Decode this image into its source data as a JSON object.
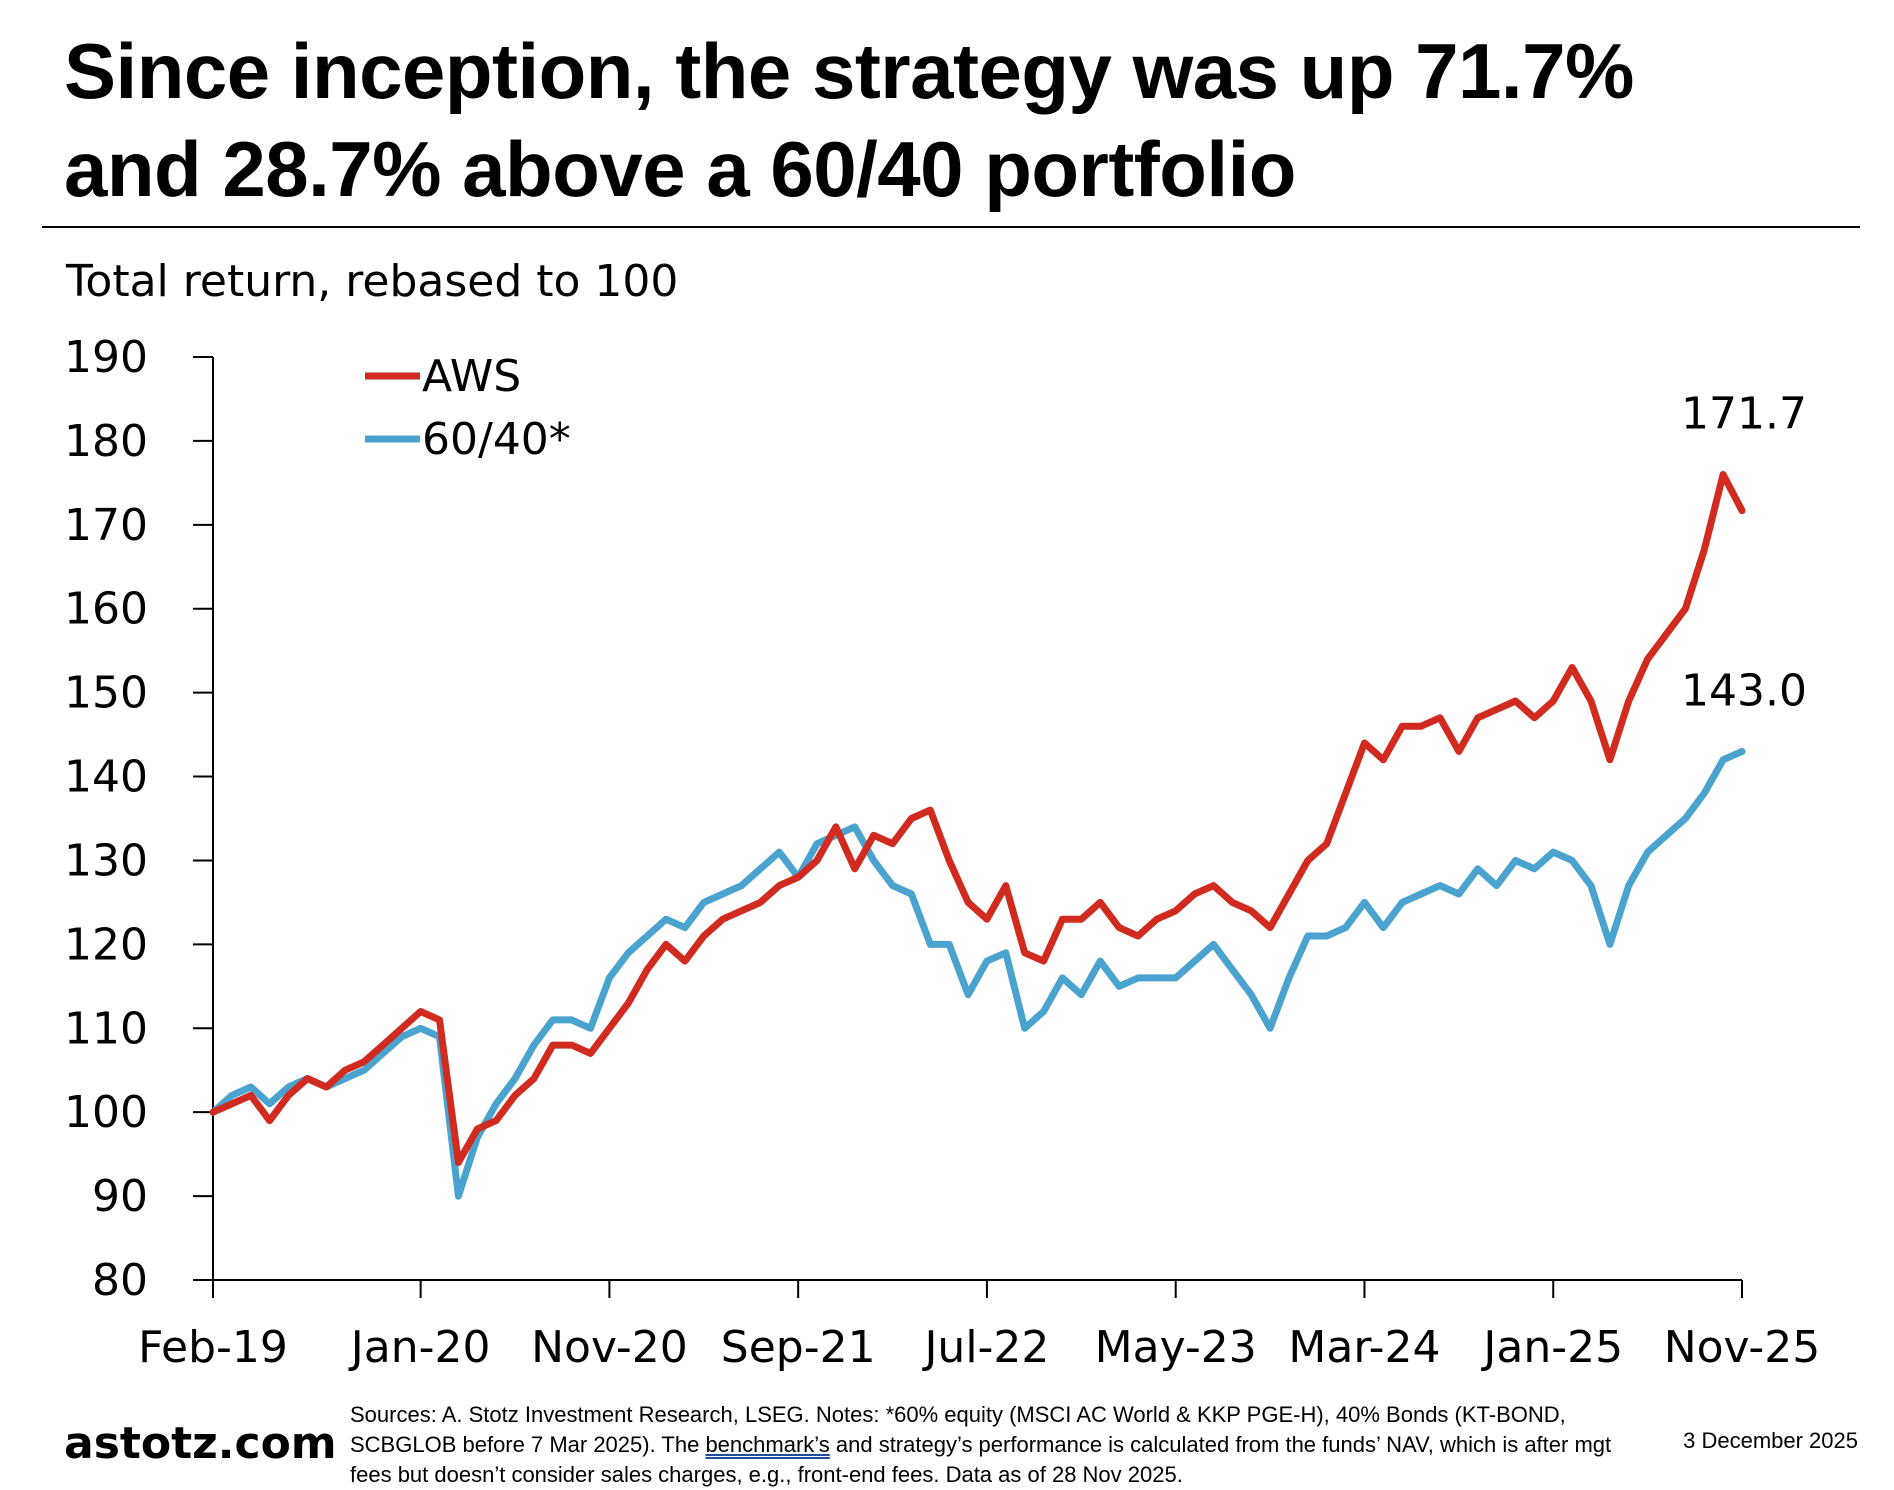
{
  "headline": {
    "line1": "Since inception, the strategy was up 71.7%",
    "line2": "and 28.7% above a 60/40 portfolio"
  },
  "chart_data": {
    "type": "line",
    "ylabel": "Total return, rebased to 100",
    "ylim": [
      80,
      190
    ],
    "yticks": [
      80,
      90,
      100,
      110,
      120,
      130,
      140,
      150,
      160,
      170,
      180,
      190
    ],
    "xticks": [
      "Feb-19",
      "Jan-20",
      "Nov-20",
      "Sep-21",
      "Jul-22",
      "May-23",
      "Mar-24",
      "Jan-25",
      "Nov-25"
    ],
    "x_tick_dates": [
      "2019-02",
      "2020-01",
      "2020-11",
      "2021-09",
      "2022-07",
      "2023-05",
      "2024-03",
      "2025-01",
      "2025-11"
    ],
    "grid": false,
    "legend_position": "top-left",
    "series": [
      {
        "name": "AWS",
        "color": "#d12a1f",
        "end_label": "171.7",
        "points": [
          [
            "2019-02",
            100
          ],
          [
            "2019-03",
            101
          ],
          [
            "2019-04",
            102
          ],
          [
            "2019-05",
            99
          ],
          [
            "2019-06",
            102
          ],
          [
            "2019-07",
            104
          ],
          [
            "2019-08",
            103
          ],
          [
            "2019-09",
            105
          ],
          [
            "2019-10",
            106
          ],
          [
            "2019-11",
            108
          ],
          [
            "2019-12",
            110
          ],
          [
            "2020-01",
            112
          ],
          [
            "2020-02",
            111
          ],
          [
            "2020-03",
            94
          ],
          [
            "2020-04",
            98
          ],
          [
            "2020-05",
            99
          ],
          [
            "2020-06",
            102
          ],
          [
            "2020-07",
            104
          ],
          [
            "2020-08",
            108
          ],
          [
            "2020-09",
            108
          ],
          [
            "2020-10",
            107
          ],
          [
            "2020-11",
            110
          ],
          [
            "2020-12",
            113
          ],
          [
            "2021-01",
            117
          ],
          [
            "2021-02",
            120
          ],
          [
            "2021-03",
            118
          ],
          [
            "2021-04",
            121
          ],
          [
            "2021-05",
            123
          ],
          [
            "2021-06",
            124
          ],
          [
            "2021-07",
            125
          ],
          [
            "2021-08",
            127
          ],
          [
            "2021-09",
            128
          ],
          [
            "2021-10",
            130
          ],
          [
            "2021-11",
            134
          ],
          [
            "2021-12",
            129
          ],
          [
            "2022-01",
            133
          ],
          [
            "2022-02",
            132
          ],
          [
            "2022-03",
            135
          ],
          [
            "2022-04",
            136
          ],
          [
            "2022-05",
            130
          ],
          [
            "2022-06",
            125
          ],
          [
            "2022-07",
            123
          ],
          [
            "2022-08",
            127
          ],
          [
            "2022-09",
            119
          ],
          [
            "2022-10",
            118
          ],
          [
            "2022-11",
            123
          ],
          [
            "2022-12",
            123
          ],
          [
            "2023-01",
            125
          ],
          [
            "2023-02",
            122
          ],
          [
            "2023-03",
            121
          ],
          [
            "2023-04",
            123
          ],
          [
            "2023-05",
            124
          ],
          [
            "2023-06",
            126
          ],
          [
            "2023-07",
            127
          ],
          [
            "2023-08",
            125
          ],
          [
            "2023-09",
            124
          ],
          [
            "2023-10",
            122
          ],
          [
            "2023-11",
            126
          ],
          [
            "2023-12",
            130
          ],
          [
            "2024-01",
            132
          ],
          [
            "2024-02",
            138
          ],
          [
            "2024-03",
            144
          ],
          [
            "2024-04",
            142
          ],
          [
            "2024-05",
            146
          ],
          [
            "2024-06",
            146
          ],
          [
            "2024-07",
            147
          ],
          [
            "2024-08",
            143
          ],
          [
            "2024-09",
            147
          ],
          [
            "2024-10",
            148
          ],
          [
            "2024-11",
            149
          ],
          [
            "2024-12",
            147
          ],
          [
            "2025-01",
            149
          ],
          [
            "2025-02",
            153
          ],
          [
            "2025-03",
            149
          ],
          [
            "2025-04",
            142
          ],
          [
            "2025-05",
            149
          ],
          [
            "2025-06",
            154
          ],
          [
            "2025-07",
            157
          ],
          [
            "2025-08",
            160
          ],
          [
            "2025-09",
            167
          ],
          [
            "2025-10",
            176
          ],
          [
            "2025-11",
            171.7
          ]
        ]
      },
      {
        "name": "60/40*",
        "color": "#4aa3cf",
        "end_label": "143.0",
        "points": [
          [
            "2019-02",
            100
          ],
          [
            "2019-03",
            102
          ],
          [
            "2019-04",
            103
          ],
          [
            "2019-05",
            101
          ],
          [
            "2019-06",
            103
          ],
          [
            "2019-07",
            104
          ],
          [
            "2019-08",
            103
          ],
          [
            "2019-09",
            104
          ],
          [
            "2019-10",
            105
          ],
          [
            "2019-11",
            107
          ],
          [
            "2019-12",
            109
          ],
          [
            "2020-01",
            110
          ],
          [
            "2020-02",
            109
          ],
          [
            "2020-03",
            90
          ],
          [
            "2020-04",
            97
          ],
          [
            "2020-05",
            101
          ],
          [
            "2020-06",
            104
          ],
          [
            "2020-07",
            108
          ],
          [
            "2020-08",
            111
          ],
          [
            "2020-09",
            111
          ],
          [
            "2020-10",
            110
          ],
          [
            "2020-11",
            116
          ],
          [
            "2020-12",
            119
          ],
          [
            "2021-01",
            121
          ],
          [
            "2021-02",
            123
          ],
          [
            "2021-03",
            122
          ],
          [
            "2021-04",
            125
          ],
          [
            "2021-05",
            126
          ],
          [
            "2021-06",
            127
          ],
          [
            "2021-07",
            129
          ],
          [
            "2021-08",
            131
          ],
          [
            "2021-09",
            128
          ],
          [
            "2021-10",
            132
          ],
          [
            "2021-11",
            133
          ],
          [
            "2021-12",
            134
          ],
          [
            "2022-01",
            130
          ],
          [
            "2022-02",
            127
          ],
          [
            "2022-03",
            126
          ],
          [
            "2022-04",
            120
          ],
          [
            "2022-05",
            120
          ],
          [
            "2022-06",
            114
          ],
          [
            "2022-07",
            118
          ],
          [
            "2022-08",
            119
          ],
          [
            "2022-09",
            110
          ],
          [
            "2022-10",
            112
          ],
          [
            "2022-11",
            116
          ],
          [
            "2022-12",
            114
          ],
          [
            "2023-01",
            118
          ],
          [
            "2023-02",
            115
          ],
          [
            "2023-03",
            116
          ],
          [
            "2023-04",
            116
          ],
          [
            "2023-05",
            116
          ],
          [
            "2023-06",
            118
          ],
          [
            "2023-07",
            120
          ],
          [
            "2023-08",
            117
          ],
          [
            "2023-09",
            114
          ],
          [
            "2023-10",
            110
          ],
          [
            "2023-11",
            116
          ],
          [
            "2023-12",
            121
          ],
          [
            "2024-01",
            121
          ],
          [
            "2024-02",
            122
          ],
          [
            "2024-03",
            125
          ],
          [
            "2024-04",
            122
          ],
          [
            "2024-05",
            125
          ],
          [
            "2024-06",
            126
          ],
          [
            "2024-07",
            127
          ],
          [
            "2024-08",
            126
          ],
          [
            "2024-09",
            129
          ],
          [
            "2024-10",
            127
          ],
          [
            "2024-11",
            130
          ],
          [
            "2024-12",
            129
          ],
          [
            "2025-01",
            131
          ],
          [
            "2025-02",
            130
          ],
          [
            "2025-03",
            127
          ],
          [
            "2025-04",
            120
          ],
          [
            "2025-05",
            127
          ],
          [
            "2025-06",
            131
          ],
          [
            "2025-07",
            133
          ],
          [
            "2025-08",
            135
          ],
          [
            "2025-09",
            138
          ],
          [
            "2025-10",
            142
          ],
          [
            "2025-11",
            143.0
          ]
        ]
      }
    ]
  },
  "footer": {
    "logo": "astotz.com",
    "notes_part1": "Sources: A. Stotz Investment Research, LSEG. Notes: *60% equity (MSCI AC World & KKP PGE-H), 40% Bonds (KT-BOND, SCBGLOB before 7 Mar 2025). The ",
    "notes_underlined": "benchmark’s",
    "notes_part2": " and strategy’s performance is calculated from the funds’ NAV, which is after mgt fees but doesn’t consider sales charges, e.g., front-end fees. Data as of 28 Nov 2025.",
    "date": "3 December 2025"
  }
}
